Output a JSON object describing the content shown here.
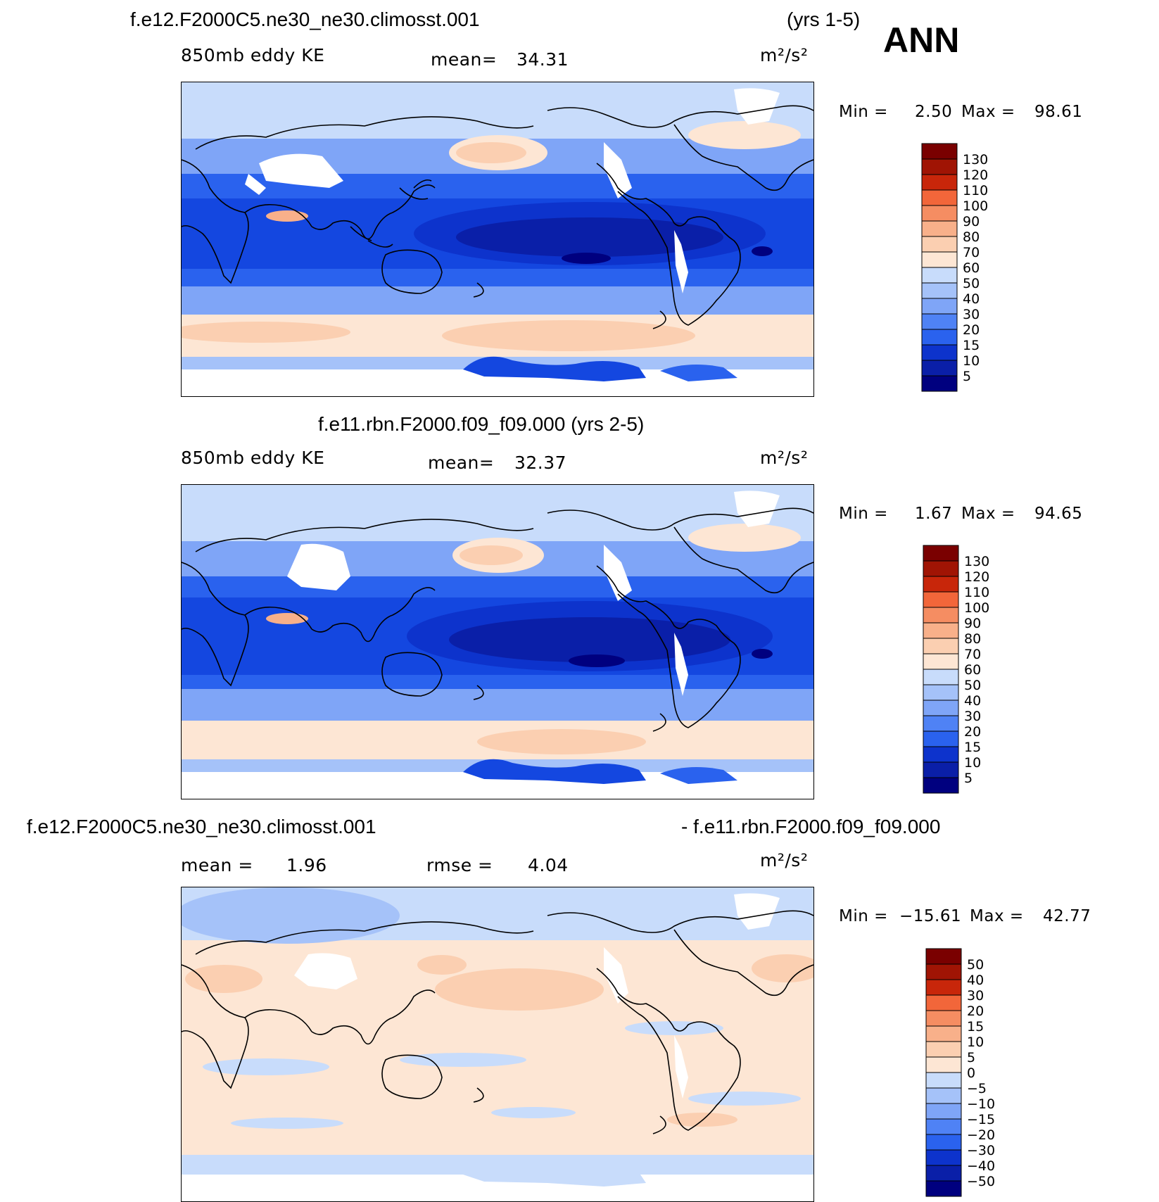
{
  "season": "ANN",
  "colors": {
    "ke_levels": [
      "#00007f",
      "#0a1fa8",
      "#0d33cc",
      "#1447e0",
      "#2a62ee",
      "#4f82f5",
      "#7fa5f7",
      "#a5c2f9",
      "#c8dcfb",
      "#e3eefd",
      "#fde6d4",
      "#fbcfb1",
      "#f8b08a",
      "#f58d62",
      "#f2663a",
      "#e83f18",
      "#c8260a",
      "#a01404",
      "#7a0000"
    ],
    "diff_levels": [
      "#00007f",
      "#0a1fa8",
      "#0d33cc",
      "#1447e0",
      "#2a62ee",
      "#4f82f5",
      "#7fa5f7",
      "#a5c2f9",
      "#c8dcfb",
      "#e3eefd",
      "#fde6d4",
      "#fbcfb1",
      "#f8b08a",
      "#f58d62",
      "#f2663a",
      "#e83f18",
      "#c8260a",
      "#a01404",
      "#7a0000"
    ]
  },
  "panels": [
    {
      "case": "f.e12.F2000C5.ne30_ne30.climosst.001",
      "years": "(yrs 1-5)",
      "field": "850mb eddy KE",
      "mean_label": "mean=",
      "mean_value": "34.31",
      "units": "m²/s²",
      "min_label": "Min =",
      "min_value": "2.50",
      "max_label": "Max =",
      "max_value": "98.61",
      "colorbar_labels": [
        "130",
        "120",
        "110",
        "100",
        "90",
        "80",
        "70",
        "60",
        "50",
        "40",
        "30",
        "20",
        "15",
        "10",
        "5"
      ]
    },
    {
      "case": "f.e11.rbn.F2000.f09_f09.000 (yrs 2-5)",
      "field": "850mb eddy KE",
      "mean_label": "mean=",
      "mean_value": "32.37",
      "units": "m²/s²",
      "min_label": "Min =",
      "min_value": "1.67",
      "max_label": "Max =",
      "max_value": "94.65",
      "colorbar_labels": [
        "130",
        "120",
        "110",
        "100",
        "90",
        "80",
        "70",
        "60",
        "50",
        "40",
        "30",
        "20",
        "15",
        "10",
        "5"
      ]
    },
    {
      "case_a": "f.e12.F2000C5.ne30_ne30.climosst.001",
      "case_b": "- f.e11.rbn.F2000.f09_f09.000",
      "mean_label": "mean =",
      "mean_value": "1.96",
      "rmse_label": "rmse =",
      "rmse_value": "4.04",
      "units": "m²/s²",
      "min_label": "Min =",
      "min_value": "−15.61",
      "max_label": "Max =",
      "max_value": "42.77",
      "colorbar_labels": [
        "50",
        "40",
        "30",
        "20",
        "15",
        "10",
        "5",
        "0",
        "−5",
        "−10",
        "−15",
        "−20",
        "−30",
        "−40",
        "−50"
      ]
    }
  ]
}
